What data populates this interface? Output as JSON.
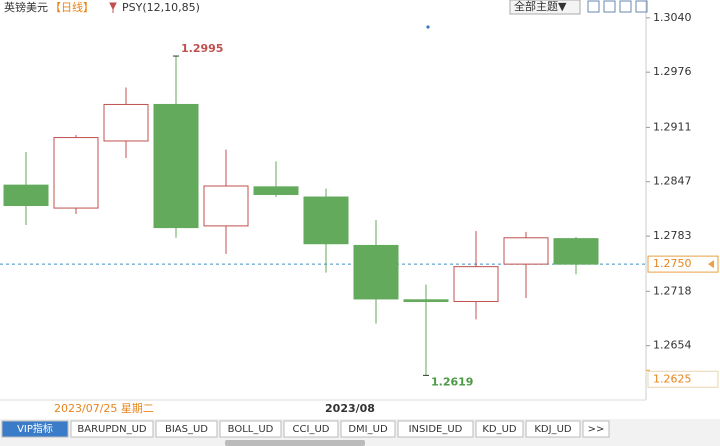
{
  "chart_data": {
    "type": "candlestick",
    "title": "英镑美元",
    "period": "【日线】",
    "indicator": "PSY(12,10,85)",
    "theme_button": "全部主题▼",
    "categories": [
      null,
      null,
      null,
      null,
      null,
      null,
      "2023/08",
      null,
      null,
      null,
      null,
      null
    ],
    "cursor_date": "2023/07/25 星期二",
    "open": [
      1.2843,
      1.2816,
      1.2895,
      1.2938,
      1.2795,
      1.2841,
      1.2829,
      1.2772,
      1.2708,
      1.2706,
      1.275,
      1.278
    ],
    "high": [
      1.2882,
      1.2902,
      1.2958,
      1.2995,
      1.2885,
      1.2871,
      1.2839,
      1.2802,
      1.2726,
      1.2789,
      1.2788,
      1.2782
    ],
    "low": [
      1.2796,
      1.2809,
      1.2875,
      1.2781,
      1.2762,
      1.2829,
      1.274,
      1.268,
      1.2619,
      1.2685,
      1.271,
      1.2738
    ],
    "close": [
      1.2819,
      1.2899,
      1.2938,
      1.2793,
      1.2842,
      1.2832,
      1.2774,
      1.2709,
      1.2706,
      1.2747,
      1.2781,
      1.275
    ],
    "up_color": "#c0504d",
    "down_color": "#63aa5c",
    "ylim": [
      1.259,
      1.3061
    ],
    "yticks": [
      {
        "value": 1.304,
        "label": "1.3040"
      },
      1.2976,
      1.2911,
      1.2847,
      1.2783,
      1.2718,
      1.2654
    ],
    "current_price": {
      "value": 1.275,
      "label": "1.2750"
    },
    "bottom_price": 1.2625,
    "tabs": [
      "VIP指标",
      "BARUPDN_UD",
      "BIAS_UD",
      "BOLL_UD",
      "CCI_UD",
      "DMI_UD",
      "INSIDE_UD",
      "KD_UD",
      "KDJ_UD",
      ">>"
    ]
  }
}
